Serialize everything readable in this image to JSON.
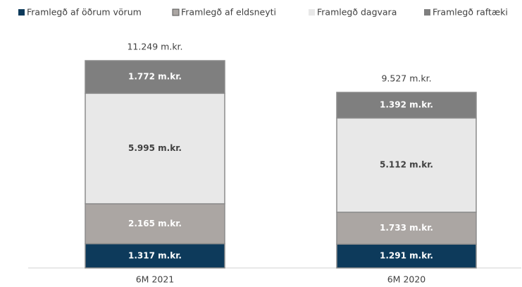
{
  "chart_data": {
    "type": "stacked_bar",
    "categories": [
      "6M 2021",
      "6M 2020"
    ],
    "series": [
      {
        "name": "Framlegð af öðrum vörum",
        "color": "#0d3a5b",
        "values": [
          1317,
          1291
        ],
        "value_labels": [
          "1.317 m.kr.",
          "1.291 m.kr."
        ]
      },
      {
        "name": "Framlegð af eldsneyti",
        "color": "#aba6a3",
        "values": [
          2165,
          1733
        ],
        "value_labels": [
          "2.165 m.kr.",
          "1.733 m.kr."
        ]
      },
      {
        "name": "Framlegð dagvara",
        "color": "#e8e8e8",
        "values": [
          5995,
          5112
        ],
        "value_labels": [
          "5.995 m.kr.",
          "5.112 m.kr."
        ]
      },
      {
        "name": "Framlegð raftæki",
        "color": "#7f7f7f",
        "values": [
          1772,
          1392
        ],
        "value_labels": [
          "1.772 m.kr.",
          "1.392 m.kr."
        ]
      }
    ],
    "totals": [
      11249,
      9527
    ],
    "total_labels": [
      "11.249 m.kr.",
      "9.527 m.kr."
    ]
  }
}
